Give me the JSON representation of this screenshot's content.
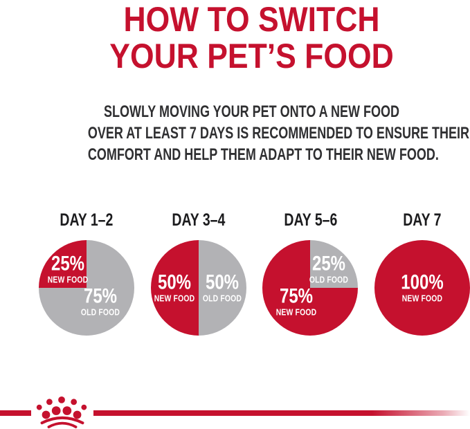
{
  "title": {
    "line1": "HOW TO SWITCH",
    "line2": "YOUR PET’S FOOD"
  },
  "subtitle": {
    "line1": "SLOWLY MOVING YOUR PET ONTO A NEW FOOD",
    "line2": "OVER AT LEAST 7 DAYS IS RECOMMENDED TO ENSURE THEIR",
    "line3": "COMFORT AND HELP THEM ADAPT TO THEIR NEW FOOD."
  },
  "colors": {
    "brand_red": "#c5112e",
    "old_food_gray": "#b2b2b5",
    "subtitle_dark": "#2f2f31",
    "heading_black": "#1c1c1e",
    "slice_label_white": "#ffffff"
  },
  "chart_data": {
    "type": "pie",
    "description": "Four pie charts showing gradual transition from old pet food to new pet food over 7 days",
    "legend_position": "labels-inside-slices",
    "charts": [
      {
        "title": "DAY 1–2",
        "start_angle_deg": 270,
        "slices": [
          {
            "value": 25,
            "label": "25%",
            "sublabel": "NEW FOOD",
            "color": "#c5112e"
          },
          {
            "value": 75,
            "label": "75%",
            "sublabel": "OLD FOOD",
            "color": "#b2b2b5"
          }
        ]
      },
      {
        "title": "DAY 3–4",
        "start_angle_deg": 180,
        "slices": [
          {
            "value": 50,
            "label": "50%",
            "sublabel": "NEW FOOD",
            "color": "#c5112e"
          },
          {
            "value": 50,
            "label": "50%",
            "sublabel": "OLD FOOD",
            "color": "#b2b2b5"
          }
        ]
      },
      {
        "title": "DAY 5–6",
        "start_angle_deg": 90,
        "slices": [
          {
            "value": 75,
            "label": "75%",
            "sublabel": "NEW FOOD",
            "color": "#c5112e"
          },
          {
            "value": 25,
            "label": "25%",
            "sublabel": "OLD FOOD",
            "color": "#b2b2b5"
          }
        ]
      },
      {
        "title": "DAY 7",
        "start_angle_deg": 0,
        "slices": [
          {
            "value": 100,
            "label": "100%",
            "sublabel": "NEW FOOD",
            "color": "#c5112e"
          }
        ]
      }
    ]
  },
  "footer": {
    "logo": "royal-canin-crown",
    "stripe_color": "#c5112e"
  }
}
